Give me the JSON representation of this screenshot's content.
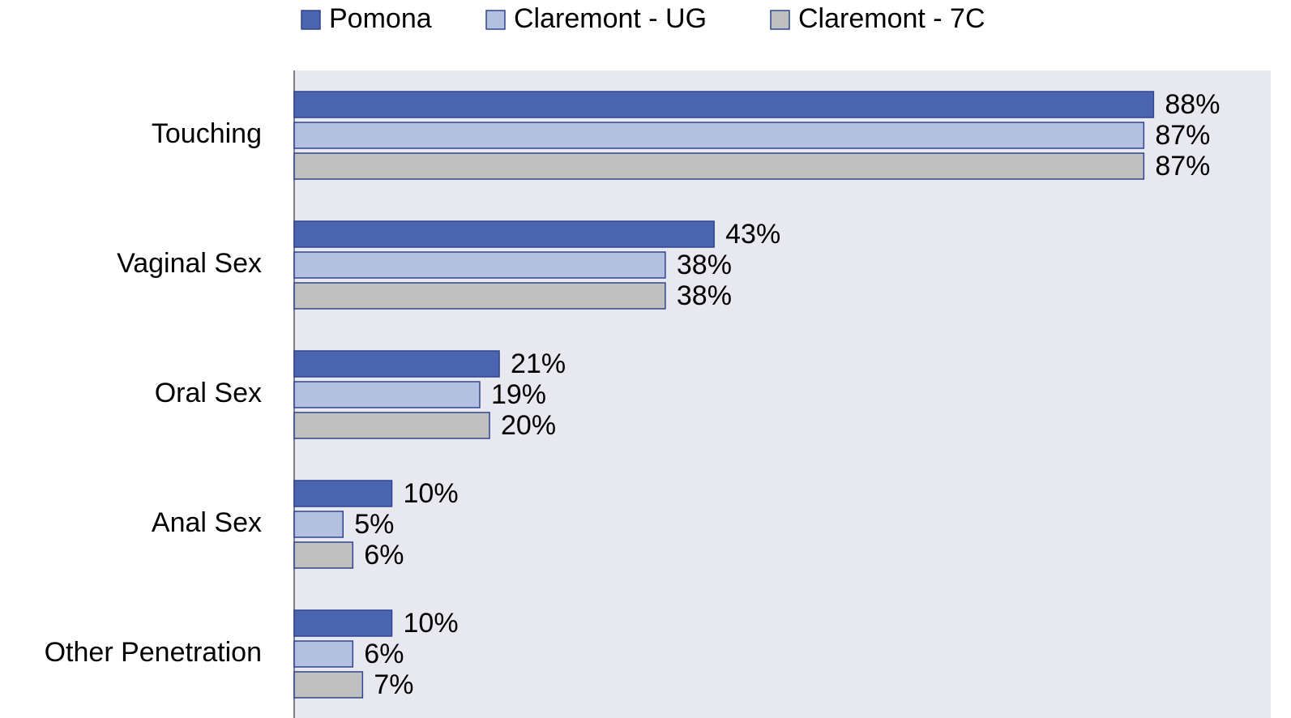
{
  "chart_data": {
    "type": "bar",
    "orientation": "horizontal",
    "categories": [
      "Touching",
      "Vaginal Sex",
      "Oral Sex",
      "Anal Sex",
      "Other Penetration"
    ],
    "series": [
      {
        "name": "Pomona",
        "color": "#4a65ae",
        "values": [
          88,
          43,
          21,
          10,
          10
        ],
        "value_labels": [
          "88%",
          "43%",
          "21%",
          "10%",
          "10%"
        ]
      },
      {
        "name": "Claremont - UG",
        "color": "#b4c0e0",
        "values": [
          87,
          38,
          19,
          5,
          6
        ],
        "value_labels": [
          "87%",
          "38%",
          "19%",
          "5%",
          "6%"
        ]
      },
      {
        "name": "Claremont - 7C",
        "color": "#c0c0c0",
        "values": [
          87,
          38,
          20,
          6,
          7
        ],
        "value_labels": [
          "87%",
          "38%",
          "20%",
          "6%",
          "7%"
        ]
      }
    ],
    "xlim": [
      0,
      100
    ],
    "legend": "top"
  }
}
